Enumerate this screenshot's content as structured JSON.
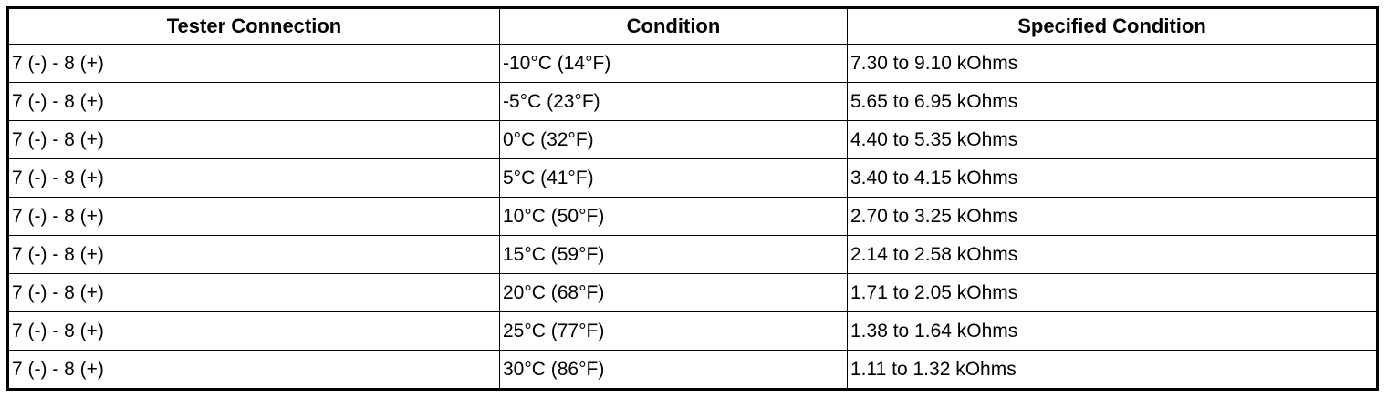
{
  "table": {
    "header": [
      "Tester Connection",
      "Condition",
      "Specified Condition"
    ],
    "rows": [
      [
        "7 (-) - 8 (+)",
        "-10°C (14°F)",
        "7.30 to 9.10 kOhms"
      ],
      [
        "7 (-) - 8 (+)",
        "-5°C (23°F)",
        "5.65 to 6.95 kOhms"
      ],
      [
        "7 (-) - 8 (+)",
        "0°C (32°F)",
        "4.40 to 5.35 kOhms"
      ],
      [
        "7 (-) - 8 (+)",
        "5°C (41°F)",
        "3.40 to 4.15 kOhms"
      ],
      [
        "7 (-) - 8 (+)",
        "10°C (50°F)",
        "2.70 to 3.25 kOhms"
      ],
      [
        "7 (-) - 8 (+)",
        "15°C (59°F)",
        "2.14 to 2.58 kOhms"
      ],
      [
        "7 (-) - 8 (+)",
        "20°C (68°F)",
        "1.71 to 2.05 kOhms"
      ],
      [
        "7 (-) - 8 (+)",
        "25°C (77°F)",
        "1.38 to 1.64 kOhms"
      ],
      [
        "7 (-) - 8 (+)",
        "30°C (86°F)",
        "1.11 to 1.32 kOhms"
      ]
    ]
  }
}
